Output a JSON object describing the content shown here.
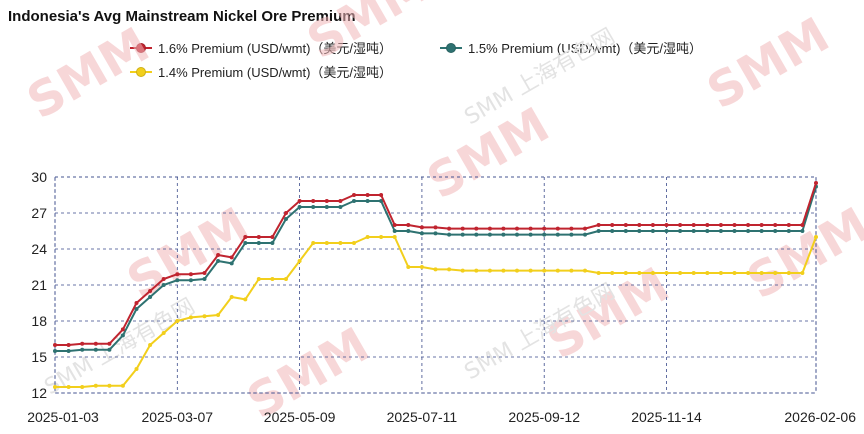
{
  "chart_data": {
    "type": "line",
    "title": "Indonesia's Avg Mainstream Nickel Ore Premium",
    "xlabel": "",
    "ylabel": "",
    "ylim": [
      12,
      30
    ],
    "yticks": [
      12,
      15,
      18,
      21,
      24,
      27,
      30
    ],
    "xtick_labels": [
      "2025-01-03",
      "2025-03-07",
      "2025-05-09",
      "2025-07-11",
      "2025-09-12",
      "2025-11-14",
      "2026-02-06"
    ],
    "xtick_index": [
      0,
      9,
      18,
      27,
      36,
      45,
      56
    ],
    "grid": true,
    "legend_position": "top",
    "series": [
      {
        "name": "1.6% Premium (USD/wmt)（美元/湿吨）",
        "color": "#c0242f",
        "values": [
          16.0,
          16.0,
          16.1,
          16.1,
          16.1,
          17.3,
          19.5,
          20.5,
          21.5,
          21.9,
          21.9,
          22.0,
          23.5,
          23.3,
          25.0,
          25.0,
          25.0,
          27.0,
          28.0,
          28.0,
          28.0,
          28.0,
          28.5,
          28.5,
          28.5,
          26.0,
          26.0,
          25.8,
          25.8,
          25.7,
          25.7,
          25.7,
          25.7,
          25.7,
          25.7,
          25.7,
          25.7,
          25.7,
          25.7,
          25.7,
          26.0,
          26.0,
          26.0,
          26.0,
          26.0,
          26.0,
          26.0,
          26.0,
          26.0,
          26.0,
          26.0,
          26.0,
          26.0,
          26.0,
          26.0,
          26.0,
          29.5
        ]
      },
      {
        "name": "1.5% Premium (USD/wmt)（美元/湿吨）",
        "color": "#2e7271",
        "values": [
          15.5,
          15.5,
          15.6,
          15.6,
          15.6,
          16.8,
          19.0,
          20.0,
          21.0,
          21.4,
          21.4,
          21.5,
          23.0,
          22.8,
          24.5,
          24.5,
          24.5,
          26.5,
          27.5,
          27.5,
          27.5,
          27.5,
          28.0,
          28.0,
          28.0,
          25.5,
          25.5,
          25.3,
          25.3,
          25.2,
          25.2,
          25.2,
          25.2,
          25.2,
          25.2,
          25.2,
          25.2,
          25.2,
          25.2,
          25.2,
          25.5,
          25.5,
          25.5,
          25.5,
          25.5,
          25.5,
          25.5,
          25.5,
          25.5,
          25.5,
          25.5,
          25.5,
          25.5,
          25.5,
          25.5,
          25.5,
          29.2
        ]
      },
      {
        "name": "1.4% Premium (USD/wmt)（美元/湿吨）",
        "color": "#f2cf1c",
        "values": [
          12.5,
          12.5,
          12.5,
          12.6,
          12.6,
          12.6,
          14.0,
          16.0,
          17.0,
          18.0,
          18.3,
          18.4,
          18.5,
          20.0,
          19.8,
          21.5,
          21.5,
          21.5,
          23.0,
          24.5,
          24.5,
          24.5,
          24.5,
          25.0,
          25.0,
          25.0,
          22.5,
          22.5,
          22.3,
          22.3,
          22.2,
          22.2,
          22.2,
          22.2,
          22.2,
          22.2,
          22.2,
          22.2,
          22.2,
          22.2,
          22.0,
          22.0,
          22.0,
          22.0,
          22.0,
          22.0,
          22.0,
          22.0,
          22.0,
          22.0,
          22.0,
          22.0,
          22.0,
          22.0,
          22.0,
          22.0,
          25.0
        ]
      }
    ]
  },
  "watermark": {
    "logo": "SMM",
    "cn_text": "SMM 上海有色网"
  }
}
